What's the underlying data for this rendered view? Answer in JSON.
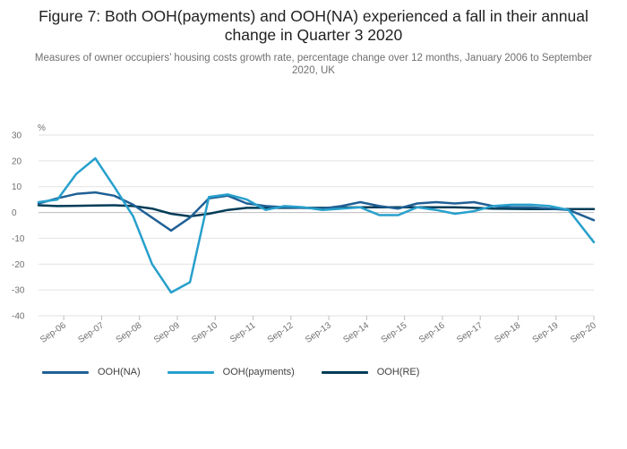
{
  "title": "Figure 7: Both OOH(payments) and OOH(NA) experienced a fall in their annual change in Quarter 3 2020",
  "subtitle": "Measures of owner occupiers’ housing costs growth rate, percentage change over 12 months, January 2006 to September 2020, UK",
  "chart_data": {
    "type": "line",
    "ylabel": "%",
    "xlabel": "",
    "ylim": [
      -40,
      30
    ],
    "yticks": [
      30,
      20,
      10,
      0,
      -10,
      -20,
      -30,
      -40
    ],
    "grid": true,
    "legend_position": "bottom-left",
    "x": [
      "Jan-06",
      "Jul-06",
      "Jan-07",
      "Jul-07",
      "Jan-08",
      "Jul-08",
      "Jan-09",
      "Jul-09",
      "Jan-10",
      "Jul-10",
      "Jan-11",
      "Jul-11",
      "Jan-12",
      "Jul-12",
      "Jan-13",
      "Jul-13",
      "Jan-14",
      "Jul-14",
      "Jan-15",
      "Jul-15",
      "Jan-16",
      "Jul-16",
      "Jan-17",
      "Jul-17",
      "Jan-18",
      "Jul-18",
      "Jan-19",
      "Jul-19",
      "Jan-20",
      "Sep-20"
    ],
    "xtick_labels": [
      "Sep-06",
      "Sep-07",
      "Sep-08",
      "Sep-09",
      "Sep-10",
      "Sep-11",
      "Sep-12",
      "Sep-13",
      "Sep-14",
      "Sep-15",
      "Sep-16",
      "Sep-17",
      "Sep-18",
      "Sep-19",
      "Sep-20"
    ],
    "series": [
      {
        "name": "OOH(NA)",
        "color": "#206095",
        "values": [
          3.5,
          5.5,
          7.2,
          7.8,
          6.5,
          3.0,
          -2.0,
          -7.0,
          -2.0,
          5.5,
          6.5,
          3.5,
          2.5,
          2.0,
          1.8,
          1.5,
          2.5,
          4.0,
          2.5,
          1.5,
          3.5,
          4.0,
          3.5,
          4.0,
          2.5,
          2.0,
          2.0,
          1.5,
          1.0,
          -3.0
        ]
      },
      {
        "name": "OOH(payments)",
        "color": "#27a0cc",
        "values": [
          4.0,
          5.0,
          15.0,
          21.0,
          10.0,
          -1.5,
          -20.0,
          -31.0,
          -27.0,
          6.0,
          7.0,
          5.0,
          1.0,
          2.5,
          2.0,
          1.0,
          1.5,
          2.0,
          -1.0,
          -1.0,
          2.0,
          1.0,
          -0.5,
          0.5,
          2.5,
          3.0,
          3.0,
          2.5,
          1.0,
          -11.5
        ]
      },
      {
        "name": "OOH(RE)",
        "color": "#003c57",
        "values": [
          2.8,
          2.5,
          2.6,
          2.7,
          2.8,
          2.5,
          1.5,
          -0.5,
          -1.5,
          -0.5,
          1.0,
          1.8,
          1.8,
          1.8,
          1.8,
          1.8,
          1.9,
          2.0,
          2.0,
          2.0,
          2.0,
          2.0,
          2.0,
          1.8,
          1.5,
          1.4,
          1.3,
          1.3,
          1.3,
          1.3
        ]
      }
    ]
  }
}
